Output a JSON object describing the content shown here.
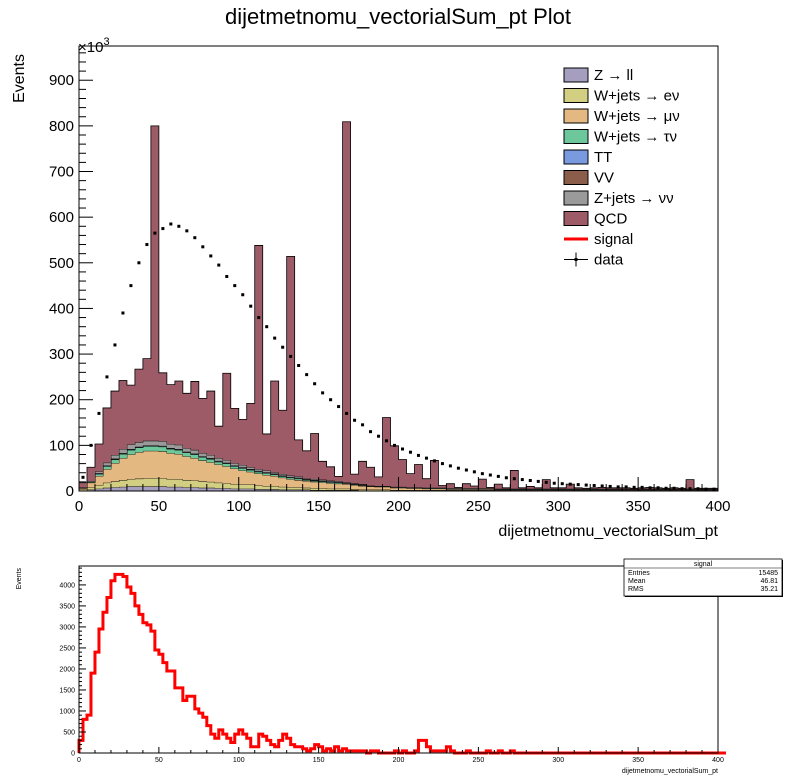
{
  "chart_data": [
    {
      "type": "histogram-stack",
      "title": "dijetmetnomu_vectorialSum_pt Plot",
      "xlabel": "dijetmetnomu_vectorialSum_pt",
      "ylabel": "Events",
      "y_exponent_label": "×10",
      "y_exponent_power": "3",
      "xlim": [
        0,
        400
      ],
      "ylim": [
        0,
        975
      ],
      "x_ticks": [
        0,
        50,
        100,
        150,
        200,
        250,
        300,
        350,
        400
      ],
      "y_ticks": [
        0,
        100,
        200,
        300,
        400,
        500,
        600,
        700,
        800,
        900
      ],
      "bin_width": 5,
      "legend_position": "top-right",
      "legend": [
        {
          "label": "Z → ll",
          "color": "#a59ebf",
          "style": "box"
        },
        {
          "label": "W+jets → eν",
          "color": "#d2cf82",
          "style": "box"
        },
        {
          "label": "W+jets → μν",
          "color": "#e3b881",
          "style": "box"
        },
        {
          "label": "W+jets → τν",
          "color": "#6cc79b",
          "style": "box"
        },
        {
          "label": "TT",
          "color": "#7a9adf",
          "style": "box"
        },
        {
          "label": "VV",
          "color": "#8b5e4b",
          "style": "box"
        },
        {
          "label": "Z+jets → νν",
          "color": "#9a9a9a",
          "style": "box"
        },
        {
          "label": "QCD",
          "color": "#9c5b66",
          "style": "box"
        },
        {
          "label": "signal",
          "color": "#ff0000",
          "style": "line"
        },
        {
          "label": "data",
          "color": "#000000",
          "style": "marker"
        }
      ],
      "series": [
        {
          "name": "Z → ll",
          "color": "#a59ebf",
          "values": [
            1,
            3,
            5,
            7,
            8,
            9,
            10,
            10,
            10,
            10,
            10,
            9,
            9,
            8,
            8,
            7,
            7,
            6,
            6,
            5,
            5,
            5,
            4,
            4,
            4,
            3,
            3,
            3,
            3,
            2,
            2,
            2,
            2,
            2,
            2,
            1,
            1,
            1,
            1,
            1,
            1,
            1,
            1,
            1,
            1,
            1,
            1,
            1,
            1,
            1,
            1,
            1,
            1,
            1,
            1,
            1,
            1,
            1,
            1,
            1,
            1,
            1,
            1,
            1,
            1,
            1,
            1,
            1,
            1,
            1,
            1,
            1,
            1,
            1,
            1,
            1,
            1,
            1,
            1,
            1
          ]
        },
        {
          "name": "W+jets → eν",
          "color": "#d2cf82",
          "values": [
            2,
            5,
            8,
            11,
            13,
            15,
            16,
            17,
            18,
            18,
            18,
            17,
            17,
            16,
            15,
            14,
            13,
            12,
            11,
            10,
            9,
            9,
            8,
            7,
            7,
            6,
            5,
            5,
            4,
            4,
            4,
            3,
            3,
            3,
            2,
            2,
            2,
            2,
            2,
            1,
            1,
            1,
            1,
            1,
            1,
            1,
            1,
            1,
            1,
            1,
            1,
            1,
            1,
            1,
            1,
            1,
            1,
            1,
            1,
            1,
            1,
            1,
            1,
            1,
            1,
            1,
            1,
            1,
            1,
            1,
            1,
            1,
            1,
            1,
            1,
            1,
            1,
            1,
            1,
            1
          ]
        },
        {
          "name": "W+jets → μν",
          "color": "#e3b881",
          "values": [
            3,
            10,
            20,
            30,
            40,
            48,
            54,
            58,
            60,
            60,
            59,
            57,
            55,
            52,
            49,
            46,
            43,
            40,
            37,
            34,
            31,
            28,
            26,
            24,
            22,
            20,
            18,
            16,
            15,
            14,
            13,
            12,
            11,
            10,
            9,
            8,
            7,
            6,
            6,
            5,
            5,
            4,
            4,
            3,
            3,
            3,
            2,
            2,
            2,
            2,
            2,
            2,
            1,
            1,
            1,
            1,
            1,
            1,
            1,
            1,
            1,
            1,
            1,
            1,
            1,
            1,
            1,
            1,
            1,
            1,
            1,
            1,
            1,
            1,
            1,
            1,
            1,
            1,
            1,
            1
          ]
        },
        {
          "name": "W+jets → τν",
          "color": "#6cc79b",
          "values": [
            1,
            2,
            4,
            6,
            8,
            9,
            10,
            10,
            10,
            10,
            10,
            9,
            9,
            8,
            8,
            7,
            7,
            6,
            6,
            5,
            5,
            4,
            4,
            4,
            3,
            3,
            3,
            3,
            2,
            2,
            2,
            2,
            2,
            1,
            1,
            1,
            1,
            1,
            1,
            1,
            1,
            1,
            1,
            1,
            1,
            1,
            1,
            1,
            1,
            1,
            1,
            1,
            1,
            1,
            1,
            1,
            1,
            1,
            1,
            1,
            1,
            1,
            1,
            1,
            1,
            1,
            1,
            1,
            1,
            1,
            1,
            1,
            1,
            1,
            1,
            1,
            1,
            1,
            1,
            1
          ]
        },
        {
          "name": "TT",
          "color": "#7a9adf",
          "values": [
            0,
            0,
            1,
            1,
            1,
            1,
            1,
            1,
            1,
            1,
            1,
            1,
            1,
            1,
            1,
            1,
            1,
            1,
            1,
            1,
            1,
            1,
            1,
            1,
            1,
            1,
            1,
            1,
            1,
            1,
            1,
            1,
            1,
            1,
            1,
            1,
            0,
            0,
            0,
            0,
            0,
            0,
            0,
            0,
            0,
            0,
            0,
            0,
            0,
            0,
            0,
            0,
            0,
            0,
            0,
            0,
            0,
            0,
            0,
            0,
            0,
            0,
            0,
            0,
            0,
            0,
            0,
            0,
            0,
            0,
            0,
            0,
            0,
            0,
            0,
            0,
            0,
            0,
            0,
            0
          ]
        },
        {
          "name": "VV",
          "color": "#8b5e4b",
          "values": [
            0,
            0,
            1,
            1,
            1,
            1,
            1,
            1,
            1,
            1,
            1,
            1,
            1,
            1,
            1,
            1,
            1,
            1,
            1,
            1,
            1,
            1,
            1,
            1,
            1,
            1,
            1,
            1,
            1,
            1,
            1,
            1,
            1,
            1,
            1,
            1,
            0,
            0,
            0,
            0,
            0,
            0,
            0,
            0,
            0,
            0,
            0,
            0,
            0,
            0,
            0,
            0,
            0,
            0,
            0,
            0,
            0,
            0,
            0,
            0,
            0,
            0,
            0,
            0,
            0,
            0,
            0,
            0,
            0,
            0,
            0,
            0,
            0,
            0,
            0,
            0,
            0,
            0,
            0,
            0
          ]
        },
        {
          "name": "Z+jets → νν",
          "color": "#9a9a9a",
          "values": [
            1,
            2,
            4,
            6,
            8,
            9,
            10,
            10,
            10,
            10,
            10,
            9,
            9,
            8,
            8,
            7,
            7,
            6,
            6,
            5,
            5,
            4,
            4,
            4,
            3,
            3,
            3,
            3,
            2,
            2,
            2,
            2,
            2,
            1,
            1,
            1,
            1,
            1,
            1,
            1,
            1,
            1,
            1,
            1,
            1,
            1,
            1,
            1,
            1,
            1,
            1,
            1,
            1,
            1,
            1,
            1,
            1,
            1,
            1,
            1,
            1,
            1,
            1,
            1,
            1,
            1,
            1,
            1,
            1,
            1,
            1,
            1,
            1,
            1,
            1,
            1,
            1,
            1,
            1,
            1
          ]
        },
        {
          "name": "QCD",
          "color": "#9c5b66",
          "values": [
            10,
            30,
            60,
            120,
            140,
            150,
            130,
            160,
            180,
            690,
            150,
            130,
            140,
            120,
            150,
            120,
            140,
            70,
            190,
            120,
            100,
            140,
            490,
            80,
            200,
            140,
            480,
            80,
            60,
            100,
            40,
            30,
            10,
            790,
            20,
            50,
            40,
            20,
            150,
            90,
            60,
            30,
            50,
            20,
            60,
            5,
            10,
            2,
            10,
            5,
            20,
            2,
            10,
            2,
            40,
            2,
            5,
            2,
            20,
            2,
            2,
            10,
            2,
            1,
            2,
            3,
            2,
            2,
            2,
            1,
            2,
            3,
            2,
            1,
            2,
            1,
            20,
            1,
            1,
            1
          ]
        }
      ],
      "data_points": {
        "x": [
          2.5,
          7.5,
          12.5,
          17.5,
          22.5,
          27.5,
          32.5,
          37.5,
          42.5,
          47.5,
          52.5,
          57.5,
          62.5,
          67.5,
          72.5,
          77.5,
          82.5,
          87.5,
          92.5,
          97.5,
          102.5,
          107.5,
          112.5,
          117.5,
          122.5,
          127.5,
          132.5,
          137.5,
          142.5,
          147.5,
          152.5,
          157.5,
          162.5,
          167.5,
          172.5,
          177.5,
          182.5,
          187.5,
          192.5,
          197.5,
          202.5,
          207.5,
          212.5,
          217.5,
          222.5,
          227.5,
          232.5,
          237.5,
          242.5,
          247.5,
          252.5,
          257.5,
          262.5,
          267.5,
          272.5,
          277.5,
          282.5,
          287.5,
          292.5,
          297.5,
          302.5,
          307.5,
          312.5,
          317.5,
          322.5,
          327.5,
          332.5,
          337.5,
          342.5,
          347.5,
          352.5,
          357.5,
          362.5,
          367.5,
          372.5,
          377.5,
          382.5,
          387.5,
          392.5,
          397.5
        ],
        "y": [
          30,
          100,
          170,
          250,
          320,
          390,
          450,
          500,
          540,
          565,
          575,
          585,
          580,
          570,
          555,
          535,
          515,
          495,
          470,
          450,
          430,
          405,
          380,
          360,
          335,
          315,
          295,
          275,
          255,
          235,
          215,
          200,
          185,
          170,
          155,
          145,
          130,
          120,
          110,
          100,
          92,
          85,
          78,
          72,
          66,
          60,
          55,
          50,
          46,
          42,
          38,
          35,
          32,
          29,
          27,
          25,
          23,
          21,
          19,
          17,
          16,
          15,
          14,
          13,
          12,
          11,
          10,
          9,
          9,
          8,
          8,
          7,
          7,
          6,
          6,
          5,
          5,
          5,
          4,
          4
        ]
      }
    },
    {
      "type": "histogram",
      "title": "",
      "xlabel": "dijetmetnomu_vectorialSum_pt",
      "ylabel": "Events",
      "xlim": [
        0,
        400
      ],
      "ylim": [
        0,
        4450
      ],
      "x_ticks": [
        0,
        50,
        100,
        150,
        200,
        250,
        300,
        350,
        400
      ],
      "y_ticks": [
        0,
        500,
        1000,
        1500,
        2000,
        2500,
        3000,
        3500,
        4000
      ],
      "bin_width": 2.5,
      "series": [
        {
          "name": "signal",
          "color": "#ff0000",
          "values": [
            300,
            800,
            900,
            1900,
            2400,
            2950,
            3350,
            3700,
            4100,
            4250,
            4250,
            4200,
            3950,
            3800,
            3500,
            3300,
            3100,
            3050,
            2900,
            2450,
            2350,
            2150,
            1950,
            1950,
            1550,
            1550,
            1250,
            1350,
            1350,
            1050,
            950,
            850,
            650,
            450,
            350,
            550,
            450,
            350,
            250,
            450,
            550,
            450,
            350,
            150,
            150,
            450,
            400,
            300,
            200,
            150,
            300,
            450,
            350,
            200,
            150,
            150,
            100,
            50,
            100,
            200,
            150,
            50,
            100,
            50,
            150,
            50,
            100,
            50,
            50,
            50,
            50,
            50,
            0,
            50,
            50,
            0,
            0,
            0,
            0,
            50,
            0,
            50,
            0,
            0,
            50,
            300,
            300,
            150,
            50,
            50,
            50,
            50,
            150,
            50,
            0,
            0,
            0,
            50,
            0,
            0,
            0,
            0,
            50,
            0,
            0,
            50,
            0,
            0,
            50,
            0,
            0,
            0,
            0,
            0,
            0,
            0,
            0,
            0,
            0,
            0,
            0,
            0,
            0,
            0,
            0,
            0,
            0,
            0,
            0,
            0,
            0,
            0,
            0,
            0,
            0,
            0,
            0,
            0,
            0,
            0,
            0,
            0,
            0,
            0,
            0,
            0,
            0,
            0,
            0,
            0,
            0,
            0,
            0,
            0,
            0,
            0,
            0,
            0,
            0,
            0,
            0,
            0
          ]
        }
      ],
      "stats_box": {
        "title": "signal",
        "rows": [
          {
            "label": "Entries",
            "value": "15485"
          },
          {
            "label": "Mean",
            "value": "46.81"
          },
          {
            "label": "RMS",
            "value": "35.21"
          }
        ]
      }
    }
  ]
}
